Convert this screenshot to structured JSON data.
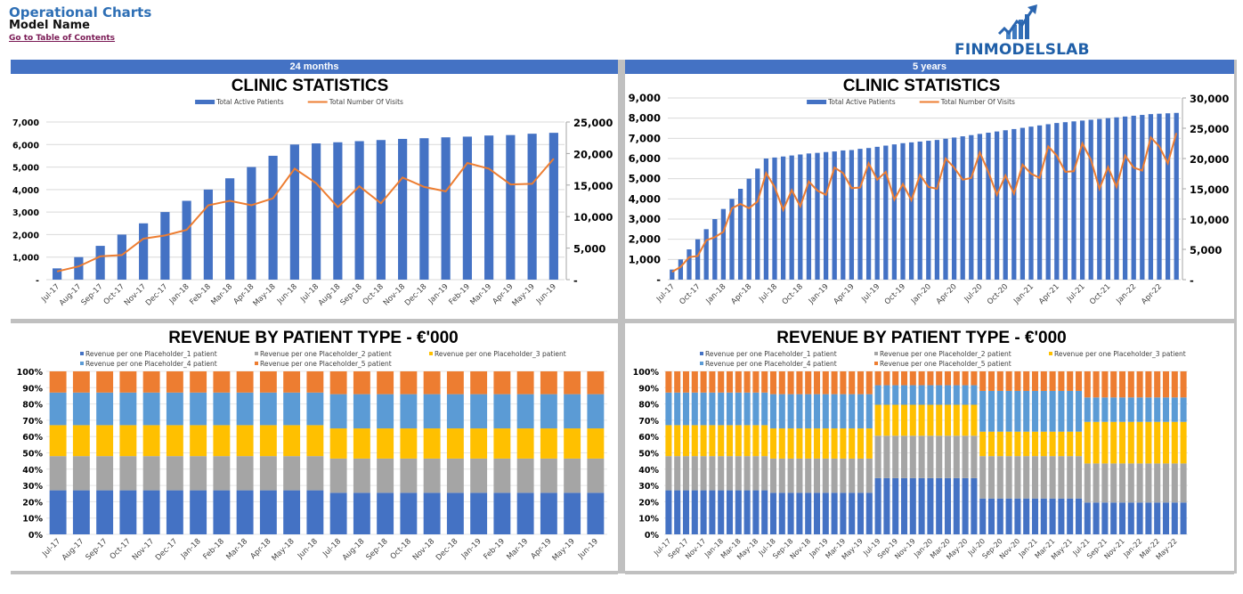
{
  "header": {
    "title": "Operational Charts",
    "model_name": "Model Name",
    "toc_link": "Go to Table of Contents",
    "logo_text": "FINMODELSLAB"
  },
  "colors": {
    "band": "#4472c4",
    "bar": "#4472c4",
    "line": "#ed7d31",
    "s1": "#4472c4",
    "s2": "#a5a5a5",
    "s3": "#ffc000",
    "s4": "#5b9bd5",
    "s5": "#ed7d31"
  },
  "panels": {
    "left_band": "24 months",
    "right_band": "5 years"
  },
  "chart_data": [
    {
      "id": "clinic-24m",
      "type": "bar+line",
      "title": "CLINIC STATISTICS",
      "legend": [
        "Total Active Patients",
        "Total Number Of Visits"
      ],
      "legend_position": "top",
      "categories": [
        "Jul-17",
        "Aug-17",
        "Sep-17",
        "Oct-17",
        "Nov-17",
        "Dec-17",
        "Jan-18",
        "Feb-18",
        "Mar-18",
        "Apr-18",
        "May-18",
        "Jun-18",
        "Jul-18",
        "Aug-18",
        "Sep-18",
        "Oct-18",
        "Nov-18",
        "Dec-18",
        "Jan-19",
        "Feb-19",
        "Mar-19",
        "Apr-19",
        "May-19",
        "Jun-19"
      ],
      "tick_labels": [
        "Jul-17",
        "Aug-17",
        "Sep-17",
        "Oct-17",
        "Nov-17",
        "Dec-17",
        "Jan-18",
        "Feb-18",
        "Mar-18",
        "Apr-18",
        "May-18",
        "Jun-18",
        "Jul-18",
        "Aug-18",
        "Sep-18",
        "Oct-18",
        "Nov-18",
        "Dec-18",
        "Jan-19",
        "Feb-19",
        "Mar-19",
        "Apr-19",
        "May-19",
        "Jun-19"
      ],
      "series": [
        {
          "name": "Total Active Patients",
          "axis": "left",
          "type": "bar",
          "values": [
            500,
            1000,
            1500,
            2000,
            2500,
            3000,
            3500,
            4000,
            4500,
            5000,
            5500,
            6000,
            6050,
            6100,
            6150,
            6200,
            6250,
            6280,
            6320,
            6350,
            6400,
            6420,
            6480,
            6520
          ]
        },
        {
          "name": "Total Number Of Visits",
          "axis": "right",
          "type": "line",
          "values": [
            1300,
            2100,
            3700,
            3900,
            6500,
            7000,
            7900,
            11800,
            12500,
            11800,
            12900,
            17600,
            15300,
            11500,
            14800,
            12100,
            16200,
            14700,
            14000,
            18500,
            17600,
            15100,
            15200,
            19200
          ]
        }
      ],
      "y_left": {
        "min": 0,
        "max": 7000,
        "step": 1000,
        "ticks": [
          "-",
          "1,000",
          "2,000",
          "3,000",
          "4,000",
          "5,000",
          "6,000",
          "7,000"
        ]
      },
      "y_right": {
        "min": 0,
        "max": 25000,
        "step": 5000,
        "ticks": [
          "-",
          "5,000",
          "10,000",
          "15,000",
          "20,000",
          "25,000"
        ]
      },
      "grid": true
    },
    {
      "id": "clinic-5y",
      "type": "bar+line",
      "title": "CLINIC STATISTICS",
      "legend": [
        "Total Active Patients",
        "Total Number Of Visits"
      ],
      "legend_position": "top",
      "categories_start": "Jul-17",
      "categories_count": 60,
      "tick_labels": [
        "Jul-17",
        "Oct-17",
        "Jan-18",
        "Apr-18",
        "Jul-18",
        "Oct-18",
        "Jan-19",
        "Apr-19",
        "Jul-19",
        "Oct-19",
        "Jan-20",
        "Apr-20",
        "Jul-20",
        "Oct-20",
        "Jan-21",
        "Apr-21",
        "Jul-21",
        "Oct-21",
        "Jan-22",
        "Apr-22"
      ],
      "series": [
        {
          "name": "Total Active Patients",
          "axis": "left",
          "type": "bar",
          "values": [
            500,
            1000,
            1500,
            2000,
            2500,
            3000,
            3500,
            4000,
            4500,
            5000,
            5500,
            6000,
            6050,
            6100,
            6150,
            6200,
            6250,
            6280,
            6320,
            6350,
            6400,
            6420,
            6480,
            6520,
            6580,
            6640,
            6700,
            6760,
            6800,
            6840,
            6880,
            6920,
            6980,
            7040,
            7100,
            7160,
            7220,
            7280,
            7340,
            7400,
            7460,
            7520,
            7580,
            7640,
            7700,
            7760,
            7800,
            7840,
            7880,
            7920,
            7960,
            8000,
            8040,
            8080,
            8120,
            8160,
            8200,
            8220,
            8240,
            8260
          ]
        },
        {
          "name": "Total Number Of Visits",
          "axis": "right",
          "type": "line",
          "values": [
            1300,
            2100,
            3700,
            3900,
            6500,
            7000,
            7900,
            11800,
            12500,
            11800,
            12900,
            17600,
            15300,
            11500,
            14800,
            12100,
            16200,
            14700,
            14000,
            18500,
            17600,
            15100,
            15200,
            19200,
            16500,
            17800,
            13200,
            15800,
            13100,
            17300,
            15300,
            15000,
            20000,
            18500,
            16500,
            16800,
            21000,
            17800,
            14000,
            17200,
            14200,
            19000,
            17500,
            16800,
            22000,
            20500,
            17800,
            17900,
            22500,
            19800,
            15000,
            18600,
            15300,
            20500,
            18500,
            18000,
            23500,
            22000,
            19200,
            24200
          ]
        }
      ],
      "y_left": {
        "min": 0,
        "max": 9000,
        "step": 1000,
        "ticks": [
          "-",
          "1,000",
          "2,000",
          "3,000",
          "4,000",
          "5,000",
          "6,000",
          "7,000",
          "8,000",
          "9,000"
        ]
      },
      "y_right": {
        "min": 0,
        "max": 30000,
        "step": 5000,
        "ticks": [
          "-",
          "5,000",
          "10,000",
          "15,000",
          "20,000",
          "25,000",
          "30,000"
        ]
      },
      "grid": true
    },
    {
      "id": "revenue-24m",
      "type": "stacked-bar-100",
      "title": "REVENUE BY PATIENT TYPE - €'000",
      "legend": [
        "Revenue per one Placeholder_1 patient",
        "Revenue per one Placeholder_2 patient",
        "Revenue per one Placeholder_3 patient",
        "Revenue per one Placeholder_4 patient",
        "Revenue per one Placeholder_5 patient"
      ],
      "legend_position": "top",
      "categories": [
        "Jul-17",
        "Aug-17",
        "Sep-17",
        "Oct-17",
        "Nov-17",
        "Dec-17",
        "Jan-18",
        "Feb-18",
        "Mar-18",
        "Apr-18",
        "May-18",
        "Jun-18",
        "Jul-18",
        "Aug-18",
        "Sep-18",
        "Oct-18",
        "Nov-18",
        "Dec-18",
        "Jan-19",
        "Feb-19",
        "Mar-19",
        "Apr-19",
        "May-19",
        "Jun-19"
      ],
      "tick_labels": [
        "Jul-17",
        "Aug-17",
        "Sep-17",
        "Oct-17",
        "Nov-17",
        "Dec-17",
        "Jan-18",
        "Feb-18",
        "Mar-18",
        "Apr-18",
        "May-18",
        "Jun-18",
        "Jul-18",
        "Aug-18",
        "Sep-18",
        "Oct-18",
        "Nov-18",
        "Dec-18",
        "Jan-19",
        "Feb-19",
        "Mar-19",
        "Apr-19",
        "May-19",
        "Jun-19"
      ],
      "regimes": [
        {
          "from": 0,
          "to": 11,
          "shares": [
            27,
            21,
            19,
            20,
            13
          ]
        },
        {
          "from": 12,
          "to": 23,
          "shares": [
            25.5,
            21,
            18.5,
            21,
            14
          ]
        }
      ],
      "y": {
        "min": 0,
        "max": 100,
        "ticks": [
          "0%",
          "10%",
          "20%",
          "30%",
          "40%",
          "50%",
          "60%",
          "70%",
          "80%",
          "90%",
          "100%"
        ]
      },
      "grid": true
    },
    {
      "id": "revenue-5y",
      "type": "stacked-bar-100",
      "title": "REVENUE BY PATIENT TYPE - €'000",
      "legend": [
        "Revenue per one Placeholder_1 patient",
        "Revenue per one Placeholder_2 patient",
        "Revenue per one Placeholder_3 patient",
        "Revenue per one Placeholder_4 patient",
        "Revenue per one Placeholder_5 patient"
      ],
      "legend_position": "top",
      "categories_start": "Jul-17",
      "categories_count": 60,
      "tick_labels": [
        "Jul-17",
        "Sep-17",
        "Nov-17",
        "Jan-18",
        "Mar-18",
        "May-18",
        "Jul-18",
        "Sep-18",
        "Nov-18",
        "Jan-19",
        "Mar-19",
        "May-19",
        "Jul-19",
        "Sep-19",
        "Nov-19",
        "Jan-20",
        "Mar-20",
        "May-20",
        "Jul-20",
        "Sep-20",
        "Nov-20",
        "Jan-21",
        "Mar-21",
        "May-21",
        "Jul-21",
        "Sep-21",
        "Nov-21",
        "Jan-22",
        "Mar-22",
        "May-22"
      ],
      "regimes": [
        {
          "from": 0,
          "to": 11,
          "shares": [
            27,
            21,
            19,
            20,
            13
          ]
        },
        {
          "from": 12,
          "to": 23,
          "shares": [
            25.5,
            21,
            18.5,
            21,
            14
          ]
        },
        {
          "from": 24,
          "to": 35,
          "shares": [
            34.5,
            26,
            19,
            12,
            8.5
          ]
        },
        {
          "from": 36,
          "to": 47,
          "shares": [
            22,
            26,
            15,
            25,
            12
          ]
        },
        {
          "from": 48,
          "to": 59,
          "shares": [
            19.5,
            24,
            25.5,
            15,
            16
          ]
        }
      ],
      "y": {
        "min": 0,
        "max": 100,
        "ticks": [
          "0%",
          "10%",
          "20%",
          "30%",
          "40%",
          "50%",
          "60%",
          "70%",
          "80%",
          "90%",
          "100%"
        ]
      },
      "grid": true
    }
  ]
}
